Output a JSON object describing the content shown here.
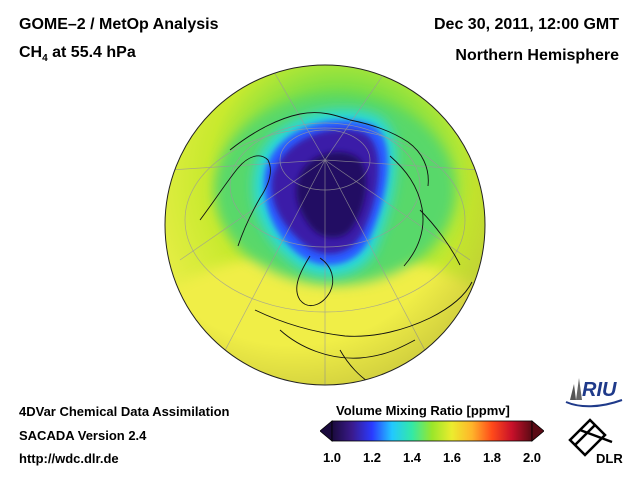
{
  "header": {
    "title": "GOME–2 / MetOp Analysis",
    "species": "CH",
    "species_subscript": "4",
    "level": " at 55.4 hPa",
    "datetime": "Dec 30, 2011, 12:00 GMT",
    "region": "Northern Hemisphere"
  },
  "footer": {
    "line1": "4DVar Chemical Data Assimilation",
    "line2": "SACADA Version 2.4",
    "url": "http://wdc.dlr.de"
  },
  "colorbar": {
    "title": "Volume Mixing Ratio [ppmv]",
    "ticks": [
      "1.0",
      "1.2",
      "1.4",
      "1.6",
      "1.8",
      "2.0"
    ],
    "colors": [
      "#1a0a3c",
      "#3a1a8c",
      "#2a3aff",
      "#22c8ff",
      "#33e9a6",
      "#9ae62a",
      "#ecec2e",
      "#ffb42a",
      "#ff4a1a",
      "#c8102a",
      "#5a0a14"
    ]
  },
  "logos": {
    "riu": "RIU",
    "dlr": "DLR"
  },
  "map": {
    "projection": "orthographic, North Pole view",
    "icons": [
      "globe-map",
      "riu-logo",
      "dlr-logo"
    ]
  }
}
